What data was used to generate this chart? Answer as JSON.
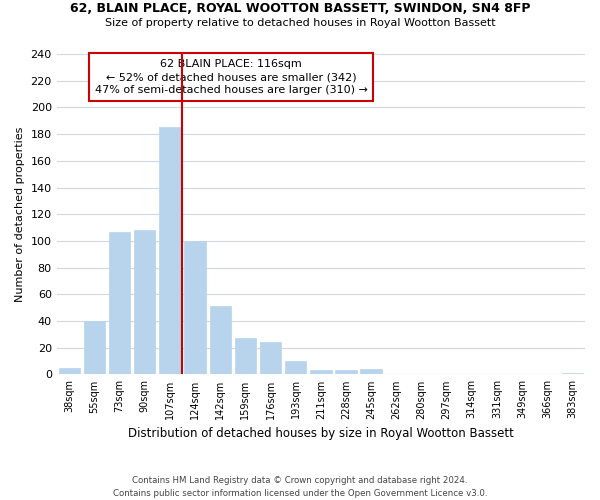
{
  "title": "62, BLAIN PLACE, ROYAL WOOTTON BASSETT, SWINDON, SN4 8FP",
  "subtitle": "Size of property relative to detached houses in Royal Wootton Bassett",
  "xlabel": "Distribution of detached houses by size in Royal Wootton Bassett",
  "ylabel": "Number of detached properties",
  "bar_labels": [
    "38sqm",
    "55sqm",
    "73sqm",
    "90sqm",
    "107sqm",
    "124sqm",
    "142sqm",
    "159sqm",
    "176sqm",
    "193sqm",
    "211sqm",
    "228sqm",
    "245sqm",
    "262sqm",
    "280sqm",
    "297sqm",
    "314sqm",
    "331sqm",
    "349sqm",
    "366sqm",
    "383sqm"
  ],
  "bar_values": [
    5,
    40,
    107,
    108,
    185,
    100,
    51,
    27,
    24,
    10,
    3,
    3,
    4,
    0,
    0,
    0,
    0,
    0,
    0,
    0,
    1
  ],
  "bar_color": "#b8d4ec",
  "bar_edge_color": "#b8d4ec",
  "vline_color": "#cc0000",
  "vline_x": 4.5,
  "ylim": [
    0,
    240
  ],
  "yticks": [
    0,
    20,
    40,
    60,
    80,
    100,
    120,
    140,
    160,
    180,
    200,
    220,
    240
  ],
  "annotation_title": "62 BLAIN PLACE: 116sqm",
  "annotation_line1": "← 52% of detached houses are smaller (342)",
  "annotation_line2": "47% of semi-detached houses are larger (310) →",
  "footnote1": "Contains HM Land Registry data © Crown copyright and database right 2024.",
  "footnote2": "Contains public sector information licensed under the Open Government Licence v3.0.",
  "background_color": "#ffffff",
  "grid_color": "#d0d8e8"
}
